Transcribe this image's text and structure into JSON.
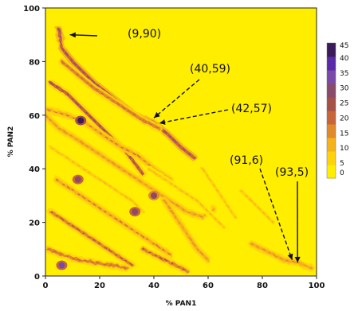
{
  "chart_data": {
    "type": "heatmap",
    "title": "",
    "xlabel": "% PAN1",
    "ylabel": "% PAN2",
    "xlim": [
      0,
      100
    ],
    "ylim": [
      0,
      100
    ],
    "x_ticks": [
      0,
      20,
      40,
      60,
      80,
      100
    ],
    "y_ticks": [
      0,
      20,
      40,
      60,
      80,
      100
    ],
    "colorbar": {
      "min": 0,
      "max": 45,
      "ticks": [
        0,
        5,
        10,
        15,
        20,
        25,
        30,
        35,
        40,
        45
      ],
      "colors": [
        "#ffee00",
        "#ffd20a",
        "#f6b21a",
        "#e08a2a",
        "#c8663a",
        "#a65048",
        "#8a4a6a",
        "#7a4aa8",
        "#5a2aa8",
        "#3a1a5a"
      ]
    },
    "background_color": "#ffee00",
    "annotations": [
      {
        "label": "(9,90)",
        "x": 9,
        "y": 90
      },
      {
        "label": "(40,59)",
        "x": 40,
        "y": 59
      },
      {
        "label": "(42,57)",
        "x": 42,
        "y": 57
      },
      {
        "label": "(91,6)",
        "x": 91,
        "y": 6
      },
      {
        "label": "(93,5)",
        "x": 93,
        "y": 5
      }
    ],
    "ridges": [
      {
        "points": [
          [
            5,
            92
          ],
          [
            6,
            85
          ],
          [
            10,
            80
          ],
          [
            14,
            76
          ],
          [
            18,
            72
          ],
          [
            23,
            68
          ],
          [
            28,
            64
          ],
          [
            33,
            60
          ],
          [
            40,
            57
          ],
          [
            45,
            53
          ],
          [
            50,
            48
          ],
          [
            55,
            44
          ]
        ],
        "level": 22
      },
      {
        "points": [
          [
            2,
            72
          ],
          [
            8,
            68
          ],
          [
            14,
            62
          ],
          [
            18,
            58
          ],
          [
            22,
            54
          ],
          [
            26,
            50
          ],
          [
            30,
            46
          ],
          [
            33,
            42
          ],
          [
            36,
            38
          ]
        ],
        "level": 18
      },
      {
        "points": [
          [
            6,
            80
          ],
          [
            12,
            75
          ],
          [
            18,
            70
          ],
          [
            24,
            66
          ],
          [
            30,
            62
          ],
          [
            36,
            58
          ],
          [
            42,
            55
          ]
        ],
        "level": 14
      },
      {
        "points": [
          [
            1,
            62
          ],
          [
            8,
            60
          ],
          [
            15,
            57
          ],
          [
            22,
            52
          ],
          [
            28,
            48
          ],
          [
            34,
            45
          ],
          [
            40,
            40
          ],
          [
            46,
            36
          ]
        ],
        "level": 12
      },
      {
        "points": [
          [
            0,
            60
          ],
          [
            5,
            55
          ],
          [
            10,
            52
          ],
          [
            16,
            48
          ],
          [
            22,
            44
          ],
          [
            28,
            40
          ],
          [
            34,
            36
          ],
          [
            40,
            32
          ],
          [
            46,
            28
          ],
          [
            52,
            24
          ],
          [
            58,
            22
          ],
          [
            62,
            25
          ]
        ],
        "level": 10
      },
      {
        "points": [
          [
            2,
            48
          ],
          [
            8,
            44
          ],
          [
            14,
            40
          ],
          [
            20,
            36
          ],
          [
            26,
            32
          ],
          [
            32,
            28
          ],
          [
            36,
            24
          ]
        ],
        "level": 8
      },
      {
        "points": [
          [
            4,
            36
          ],
          [
            10,
            32
          ],
          [
            16,
            28
          ],
          [
            22,
            24
          ],
          [
            28,
            20
          ],
          [
            34,
            16
          ],
          [
            40,
            12
          ],
          [
            46,
            8
          ]
        ],
        "level": 12
      },
      {
        "points": [
          [
            2,
            24
          ],
          [
            8,
            20
          ],
          [
            14,
            16
          ],
          [
            20,
            12
          ],
          [
            26,
            8
          ],
          [
            32,
            4
          ]
        ],
        "level": 16
      },
      {
        "points": [
          [
            1,
            10
          ],
          [
            6,
            8
          ],
          [
            12,
            6
          ],
          [
            18,
            5
          ],
          [
            24,
            4
          ],
          [
            30,
            3
          ]
        ],
        "level": 14
      },
      {
        "points": [
          [
            38,
            40
          ],
          [
            44,
            36
          ],
          [
            50,
            32
          ],
          [
            56,
            28
          ],
          [
            62,
            22
          ],
          [
            66,
            18
          ]
        ],
        "level": 8
      },
      {
        "points": [
          [
            44,
            28
          ],
          [
            48,
            22
          ],
          [
            52,
            16
          ],
          [
            56,
            10
          ],
          [
            60,
            6
          ]
        ],
        "level": 10
      },
      {
        "points": [
          [
            58,
            40
          ],
          [
            62,
            34
          ],
          [
            66,
            28
          ],
          [
            70,
            22
          ]
        ],
        "level": 6
      },
      {
        "points": [
          [
            72,
            32
          ],
          [
            76,
            28
          ],
          [
            80,
            24
          ],
          [
            84,
            20
          ]
        ],
        "level": 8
      },
      {
        "points": [
          [
            76,
            12
          ],
          [
            80,
            10
          ],
          [
            84,
            8
          ],
          [
            88,
            6
          ],
          [
            93,
            5
          ],
          [
            98,
            3
          ]
        ],
        "level": 10
      },
      {
        "points": [
          [
            36,
            10
          ],
          [
            40,
            8
          ],
          [
            44,
            6
          ],
          [
            48,
            4
          ],
          [
            52,
            2
          ]
        ],
        "level": 16
      }
    ],
    "hotspots": [
      {
        "x": 13,
        "y": 58,
        "level": 42
      },
      {
        "x": 12,
        "y": 36,
        "level": 30
      },
      {
        "x": 6,
        "y": 4,
        "level": 34
      },
      {
        "x": 33,
        "y": 24,
        "level": 30
      },
      {
        "x": 40,
        "y": 30,
        "level": 28
      }
    ]
  }
}
